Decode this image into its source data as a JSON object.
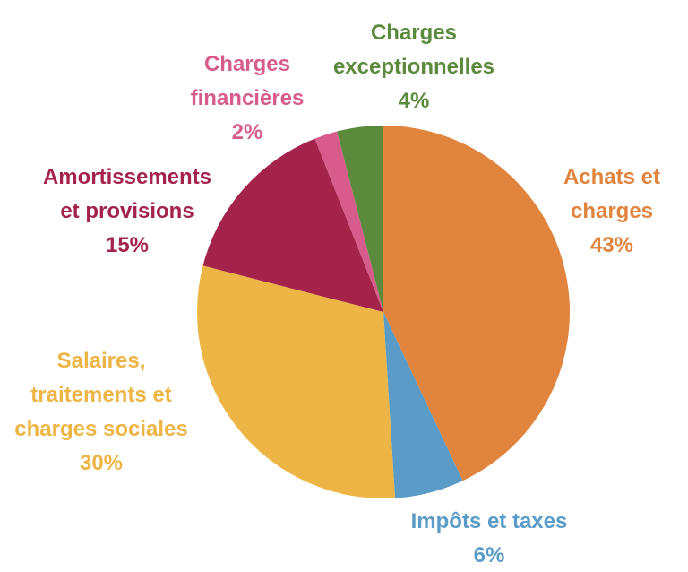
{
  "chart_data": {
    "type": "pie",
    "title": "",
    "slices": [
      {
        "label": [
          "Achats et",
          "charges"
        ],
        "value": 43,
        "value_label": "43%",
        "color": "#E0843E"
      },
      {
        "label": [
          "Impôts et taxes"
        ],
        "value": 6,
        "value_label": "6%",
        "color": "#5A9BC8"
      },
      {
        "label": [
          "Salaires,",
          "traitements et",
          "charges sociales"
        ],
        "value": 30,
        "value_label": "30%",
        "color": "#EDB545"
      },
      {
        "label": [
          "Amortissements",
          "et provisions"
        ],
        "value": 15,
        "value_label": "15%",
        "color": "#A3234B"
      },
      {
        "label": [
          "Charges",
          "financières"
        ],
        "value": 2,
        "value_label": "2%",
        "color": "#D75C8C"
      },
      {
        "label": [
          "Charges",
          "exceptionnelles"
        ],
        "value": 4,
        "value_label": "4%",
        "color": "#5B8A3C"
      }
    ],
    "start": "12 o'clock",
    "direction": "clockwise",
    "legend": "none"
  }
}
